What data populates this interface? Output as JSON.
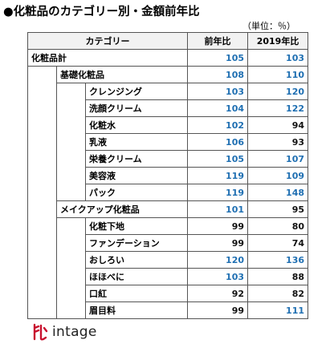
{
  "title": "●化粧品のカテゴリー別・金額前年比",
  "unit_note": "（単位：％）",
  "table": {
    "headers": [
      "カテゴリー",
      "前年比",
      "2019年比"
    ],
    "rows": [
      {
        "level": 0,
        "label": "化粧品計",
        "yoy": 105,
        "vs2019": 103
      },
      {
        "level": 1,
        "label": "基礎化粧品",
        "yoy": 108,
        "vs2019": 110
      },
      {
        "level": 2,
        "label": "クレンジング",
        "yoy": 103,
        "vs2019": 120
      },
      {
        "level": 2,
        "label": "洗顔クリーム",
        "yoy": 104,
        "vs2019": 122
      },
      {
        "level": 2,
        "label": "化粧水",
        "yoy": 102,
        "vs2019": 94
      },
      {
        "level": 2,
        "label": "乳液",
        "yoy": 106,
        "vs2019": 93
      },
      {
        "level": 2,
        "label": "栄養クリーム",
        "yoy": 105,
        "vs2019": 107
      },
      {
        "level": 2,
        "label": "美容液",
        "yoy": 119,
        "vs2019": 109
      },
      {
        "level": 2,
        "label": "パック",
        "yoy": 119,
        "vs2019": 148
      },
      {
        "level": 1,
        "label": "メイクアップ化粧品",
        "yoy": 101,
        "vs2019": 95
      },
      {
        "level": 2,
        "label": "化粧下地",
        "yoy": 99,
        "vs2019": 80
      },
      {
        "level": 2,
        "label": "ファンデーション",
        "yoy": 99,
        "vs2019": 74
      },
      {
        "level": 2,
        "label": "おしろい",
        "yoy": 120,
        "vs2019": 136
      },
      {
        "level": 2,
        "label": "ほほべに",
        "yoy": 103,
        "vs2019": 88
      },
      {
        "level": 2,
        "label": "口紅",
        "yoy": 92,
        "vs2019": 82
      },
      {
        "level": 2,
        "label": "眉目料",
        "yoy": 99,
        "vs2019": 111
      }
    ]
  },
  "colors": {
    "above_100": "#1f6fb2",
    "below_100": "#111111",
    "logo_red": "#c8102e"
  },
  "logo": {
    "icon": "intage-logo-icon",
    "text": "intage"
  }
}
